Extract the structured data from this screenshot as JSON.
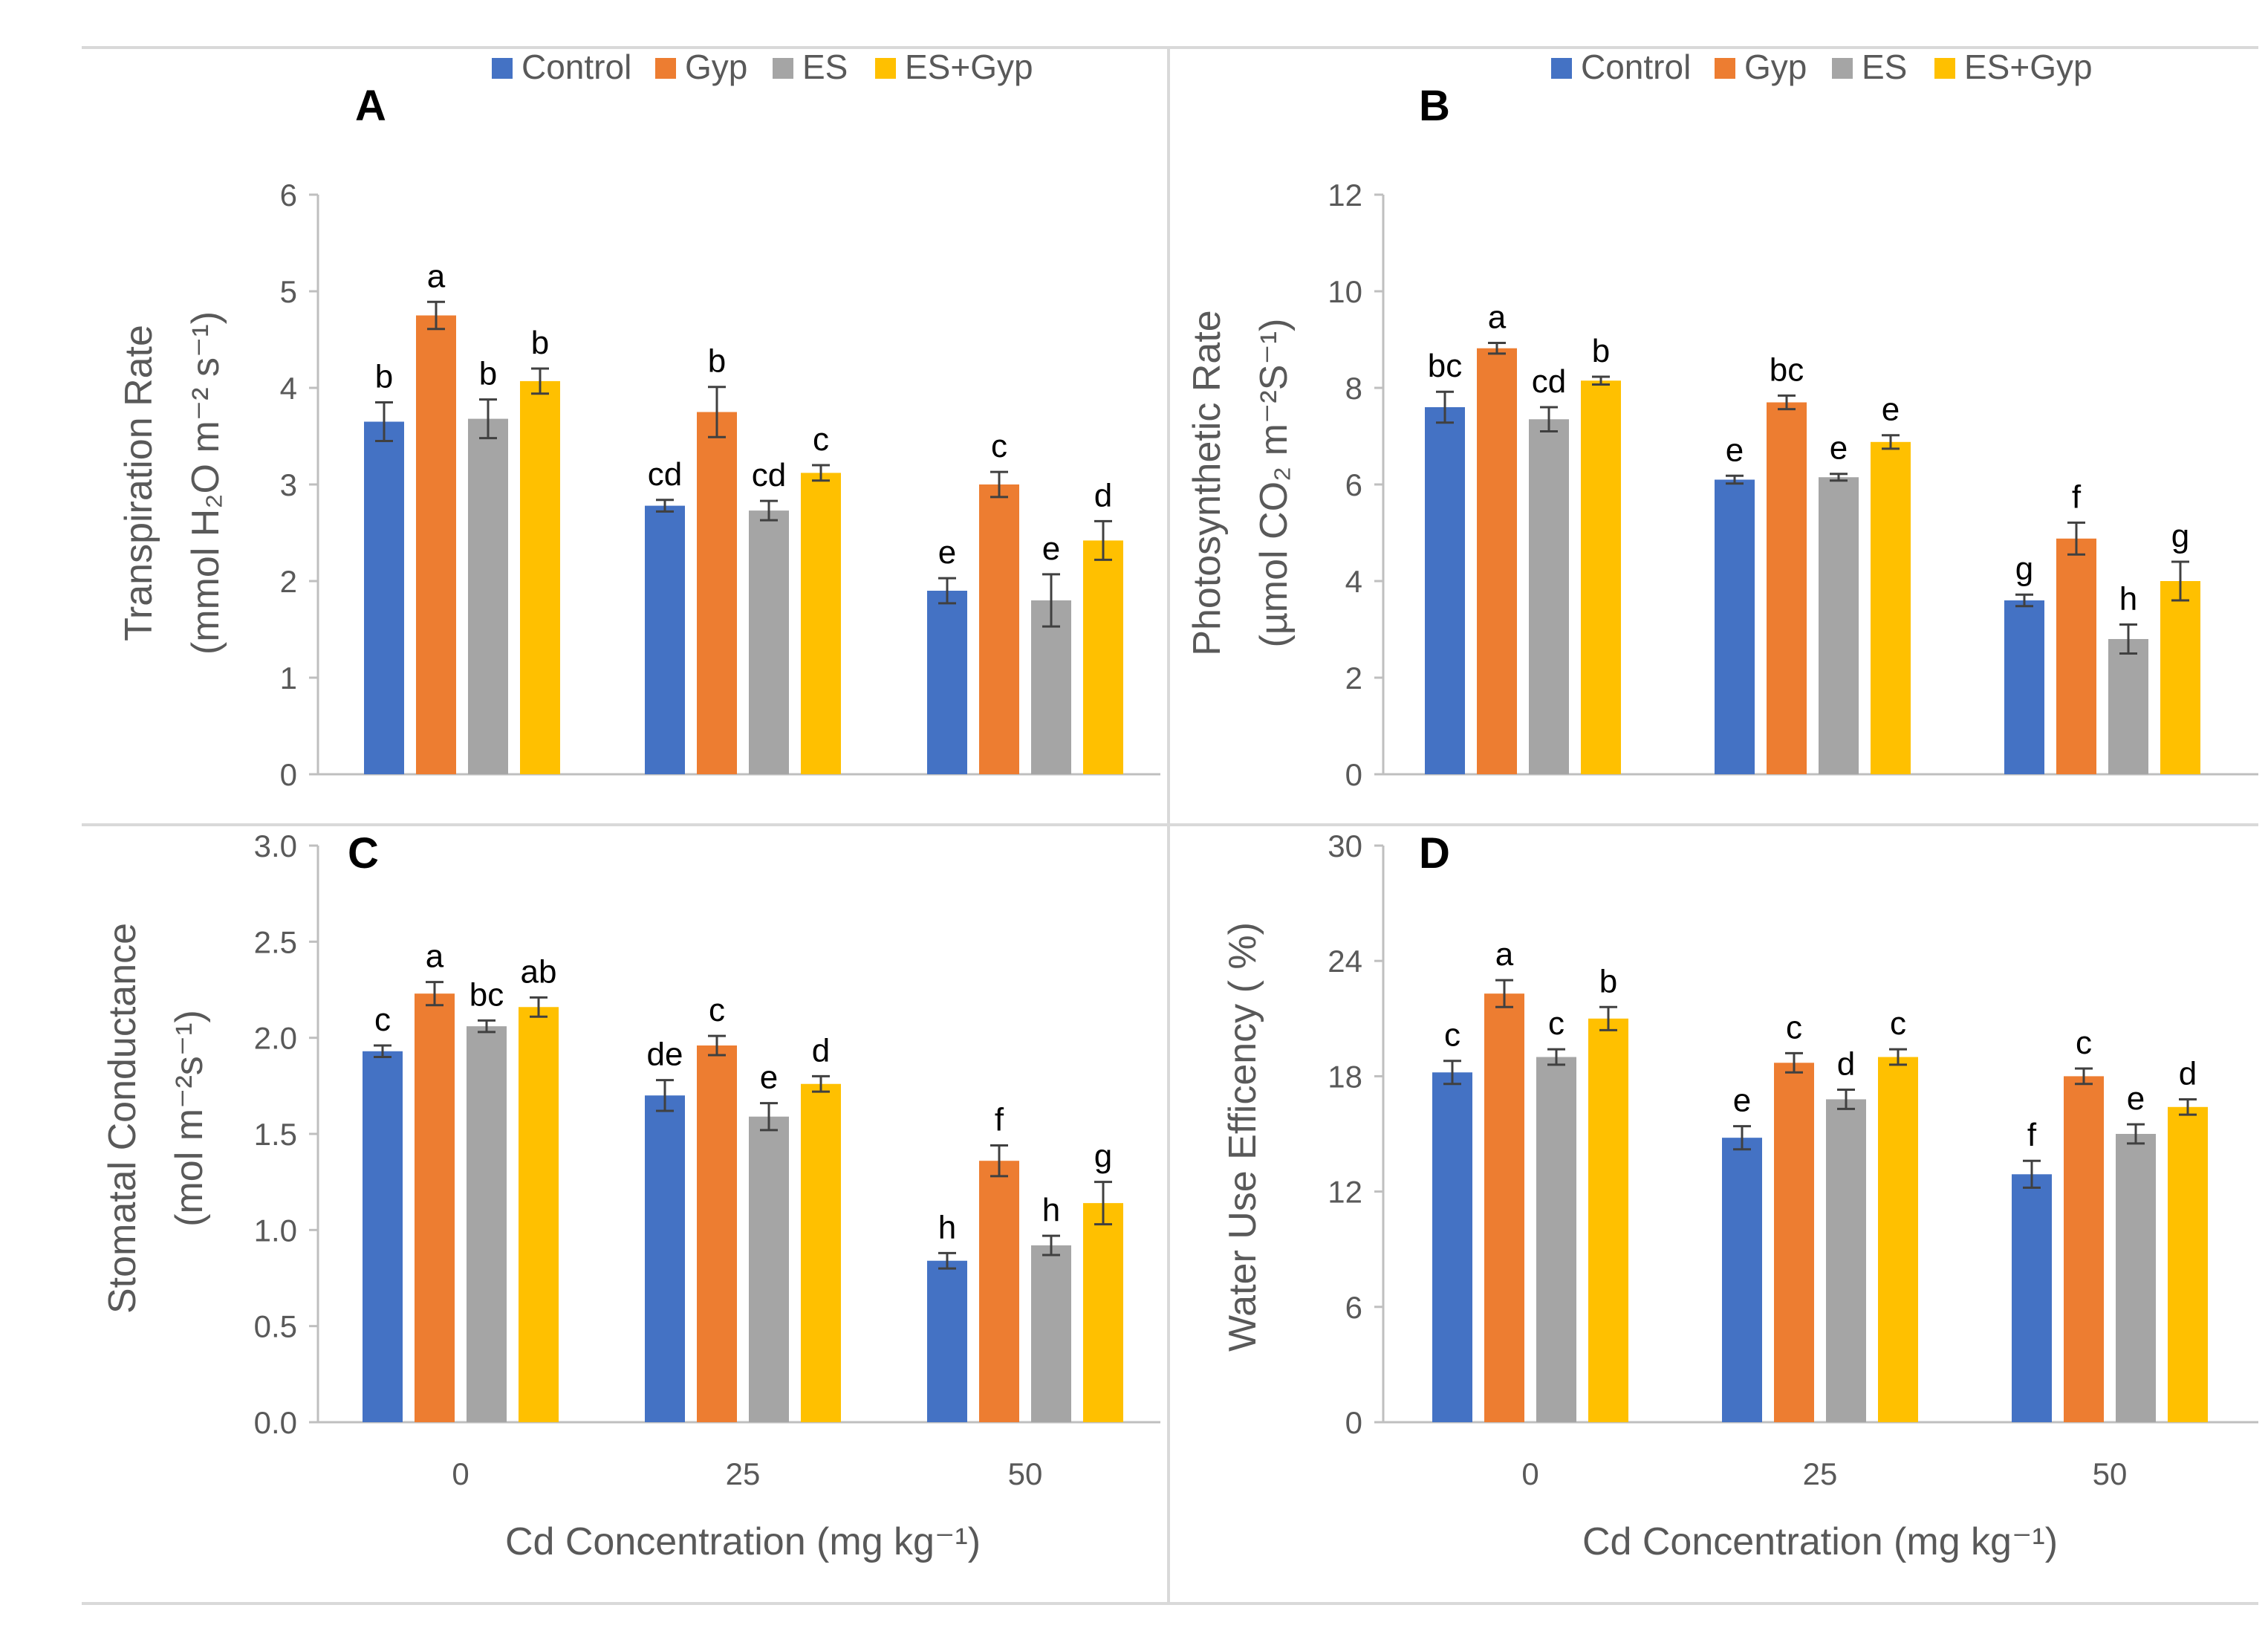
{
  "colors": {
    "Control": "#4472C4",
    "Gyp": "#ED7D31",
    "ES": "#A5A5A5",
    "ES+Gyp": "#FFC000",
    "axis": "#BFBFBF",
    "text": "#595959",
    "frame": "#D9D9D9"
  },
  "legend": [
    "Control",
    "Gyp",
    "ES",
    "ES+Gyp"
  ],
  "xlabel": "Cd Concentration (mg kg⁻¹)",
  "chart_data": [
    {
      "panel": "A",
      "type": "bar",
      "ylabel_lines": [
        "Transpiration Rate",
        "(mmol H₂O m⁻² s⁻¹)"
      ],
      "categories": [
        "0",
        "25",
        "50"
      ],
      "ylim": [
        0,
        6
      ],
      "yticks": [
        "0",
        "1",
        "2",
        "3",
        "4",
        "5",
        "6"
      ],
      "series": [
        {
          "name": "Control",
          "values": [
            3.65,
            2.78,
            1.9
          ],
          "errors": [
            0.2,
            0.06,
            0.13
          ],
          "letters": [
            "b",
            "cd",
            "e"
          ]
        },
        {
          "name": "Gyp",
          "values": [
            4.75,
            3.75,
            3.0
          ],
          "errors": [
            0.14,
            0.26,
            0.13
          ],
          "letters": [
            "a",
            "b",
            "c"
          ]
        },
        {
          "name": "ES",
          "values": [
            3.68,
            2.73,
            1.8
          ],
          "errors": [
            0.2,
            0.1,
            0.27
          ],
          "letters": [
            "b",
            "cd",
            "e"
          ]
        },
        {
          "name": "ES+Gyp",
          "values": [
            4.07,
            3.12,
            2.42
          ],
          "errors": [
            0.13,
            0.08,
            0.2
          ],
          "letters": [
            "b",
            "c",
            "d"
          ]
        }
      ]
    },
    {
      "panel": "B",
      "type": "bar",
      "ylabel_lines": [
        "Photosynthetic Rate",
        "(µmol CO₂ m⁻²S⁻¹)"
      ],
      "categories": [
        "0",
        "25",
        "50"
      ],
      "ylim": [
        0,
        12
      ],
      "yticks": [
        "0",
        "2",
        "4",
        "6",
        "8",
        "10",
        "12"
      ],
      "series": [
        {
          "name": "Control",
          "values": [
            7.6,
            6.1,
            3.6
          ],
          "errors": [
            0.32,
            0.08,
            0.12
          ],
          "letters": [
            "bc",
            "e",
            "g"
          ]
        },
        {
          "name": "Gyp",
          "values": [
            8.82,
            7.7,
            4.88
          ],
          "errors": [
            0.11,
            0.14,
            0.33
          ],
          "letters": [
            "a",
            "bc",
            "f"
          ]
        },
        {
          "name": "ES",
          "values": [
            7.35,
            6.15,
            2.8
          ],
          "errors": [
            0.25,
            0.07,
            0.3
          ],
          "letters": [
            "cd",
            "e",
            "h"
          ]
        },
        {
          "name": "ES+Gyp",
          "values": [
            8.15,
            6.88,
            4.0
          ],
          "errors": [
            0.08,
            0.14,
            0.4
          ],
          "letters": [
            "b",
            "e",
            "g"
          ]
        }
      ]
    },
    {
      "panel": "C",
      "type": "bar",
      "ylabel_lines": [
        "Stomatal Conductance",
        "(mol m⁻²s⁻¹)"
      ],
      "categories": [
        "0",
        "25",
        "50"
      ],
      "ylim": [
        0,
        3
      ],
      "yticks": [
        "0.0",
        "0.5",
        "1.0",
        "1.5",
        "2.0",
        "2.5",
        "3.0"
      ],
      "series": [
        {
          "name": "Control",
          "values": [
            1.93,
            1.7,
            0.84
          ],
          "errors": [
            0.03,
            0.08,
            0.04
          ],
          "letters": [
            "c",
            "de",
            "h"
          ]
        },
        {
          "name": "Gyp",
          "values": [
            2.23,
            1.96,
            1.36
          ],
          "errors": [
            0.06,
            0.05,
            0.08
          ],
          "letters": [
            "a",
            "c",
            "f"
          ]
        },
        {
          "name": "ES",
          "values": [
            2.06,
            1.59,
            0.92
          ],
          "errors": [
            0.03,
            0.07,
            0.05
          ],
          "letters": [
            "bc",
            "e",
            "h"
          ]
        },
        {
          "name": "ES+Gyp",
          "values": [
            2.16,
            1.76,
            1.14
          ],
          "errors": [
            0.05,
            0.04,
            0.11
          ],
          "letters": [
            "ab",
            "d",
            "g"
          ]
        }
      ]
    },
    {
      "panel": "D",
      "type": "bar",
      "ylabel_lines": [
        "Water Use Efficency ( %)"
      ],
      "categories": [
        "0",
        "25",
        "50"
      ],
      "ylim": [
        0,
        30
      ],
      "yticks": [
        "0",
        "6",
        "12",
        "18",
        "24",
        "30"
      ],
      "series": [
        {
          "name": "Control",
          "values": [
            18.2,
            14.8,
            12.9
          ],
          "errors": [
            0.6,
            0.6,
            0.7
          ],
          "letters": [
            "c",
            "e",
            "f"
          ]
        },
        {
          "name": "Gyp",
          "values": [
            22.3,
            18.7,
            18.0
          ],
          "errors": [
            0.7,
            0.5,
            0.4
          ],
          "letters": [
            "a",
            "c",
            "c"
          ]
        },
        {
          "name": "ES",
          "values": [
            19.0,
            16.8,
            15.0
          ],
          "errors": [
            0.4,
            0.5,
            0.5
          ],
          "letters": [
            "c",
            "d",
            "e"
          ]
        },
        {
          "name": "ES+Gyp",
          "values": [
            21.0,
            19.0,
            16.4
          ],
          "errors": [
            0.6,
            0.4,
            0.4
          ],
          "letters": [
            "b",
            "c",
            "d"
          ]
        }
      ]
    }
  ]
}
